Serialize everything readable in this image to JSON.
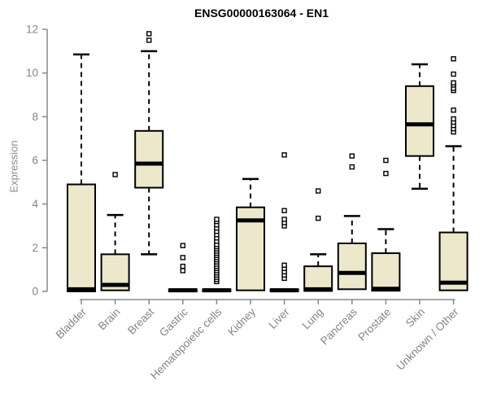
{
  "title": "ENSG00000163064 - EN1",
  "chart_data": {
    "type": "boxplot",
    "title": "ENSG00000163064 - EN1",
    "xlabel": "",
    "ylabel": "Expression",
    "ylim": [
      0,
      12
    ],
    "yticks": [
      0,
      2,
      4,
      6,
      8,
      10,
      12
    ],
    "grid": false,
    "legend": "none",
    "colors": {
      "box_fill": "#ede8cc",
      "box_stroke": "#000000",
      "median": "#000000",
      "whisker": "#000000",
      "axis": "#888888",
      "tick_label": "#848484",
      "title": "#000000",
      "background": "#ffffff"
    },
    "boxes": [
      {
        "label": "Bladder",
        "whisker_low": 0,
        "q1": 0,
        "median": 0.1,
        "q3": 4.9,
        "whisker_high": 10.85,
        "outliers": []
      },
      {
        "label": "Brain",
        "whisker_low": 0.05,
        "q1": 0.05,
        "median": 0.3,
        "q3": 1.7,
        "whisker_high": 3.5,
        "outliers": [
          5.35
        ]
      },
      {
        "label": "Breast",
        "whisker_low": 1.7,
        "q1": 4.75,
        "median": 5.85,
        "q3": 7.35,
        "whisker_high": 11.0,
        "outliers": [
          11.5,
          11.8
        ]
      },
      {
        "label": "Gastric",
        "whisker_low": 0,
        "q1": 0,
        "median": 0.05,
        "q3": 0.1,
        "whisker_high": 0.1,
        "outliers": [
          0.95,
          1.15,
          1.55,
          2.1
        ]
      },
      {
        "label": "Hematopoietic cells",
        "whisker_low": 0,
        "q1": 0,
        "median": 0.05,
        "q3": 0.1,
        "whisker_high": 0.1,
        "outliers": [
          0.45,
          0.55,
          0.65,
          0.75,
          0.85,
          0.95,
          1.05,
          1.15,
          1.25,
          1.35,
          1.45,
          1.55,
          1.65,
          1.75,
          1.85,
          1.95,
          2.05,
          2.15,
          2.3,
          2.45,
          2.6,
          2.75,
          2.9,
          3.05,
          3.2,
          3.3
        ]
      },
      {
        "label": "Kidney",
        "whisker_low": 0.05,
        "q1": 0.05,
        "median": 3.25,
        "q3": 3.85,
        "whisker_high": 5.15,
        "outliers": []
      },
      {
        "label": "Liver",
        "whisker_low": 0,
        "q1": 0,
        "median": 0.05,
        "q3": 0.1,
        "whisker_high": 0.1,
        "outliers": [
          0.6,
          0.75,
          0.9,
          1.05,
          1.2,
          3.0,
          3.15,
          3.3,
          3.7,
          6.25
        ]
      },
      {
        "label": "Lung",
        "whisker_low": 0.02,
        "q1": 0.02,
        "median": 0.1,
        "q3": 1.15,
        "whisker_high": 1.7,
        "outliers": [
          3.35,
          4.6
        ]
      },
      {
        "label": "Pancreas",
        "whisker_low": 0.1,
        "q1": 0.1,
        "median": 0.85,
        "q3": 2.2,
        "whisker_high": 3.45,
        "outliers": [
          5.7,
          6.2
        ]
      },
      {
        "label": "Prostate",
        "whisker_low": 0.03,
        "q1": 0.03,
        "median": 0.12,
        "q3": 1.75,
        "whisker_high": 2.85,
        "outliers": [
          5.4,
          6.0
        ]
      },
      {
        "label": "Skin",
        "whisker_low": 4.7,
        "q1": 6.2,
        "median": 7.65,
        "q3": 9.4,
        "whisker_high": 10.4,
        "outliers": []
      },
      {
        "label": "Unknown / Other",
        "whisker_low": 0.05,
        "q1": 0.05,
        "median": 0.4,
        "q3": 2.7,
        "whisker_high": 6.65,
        "outliers": [
          7.3,
          7.45,
          7.6,
          7.75,
          7.9,
          8.3,
          9.2,
          9.3,
          9.45,
          9.55,
          9.95,
          10.65
        ]
      }
    ]
  }
}
